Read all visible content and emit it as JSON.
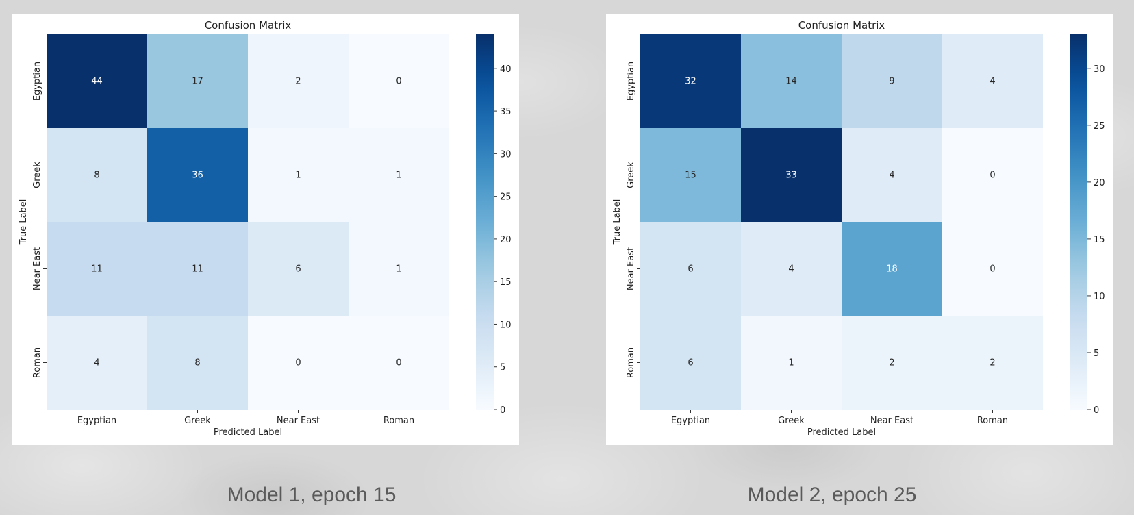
{
  "colors": {
    "low": "#f7fbff",
    "high": "#08306b",
    "annot_light_text": "#ffffff",
    "annot_dark_text": "#262626"
  },
  "panels": [
    {
      "caption": "Model 1, epoch 15"
    },
    {
      "caption": "Model 2, epoch 25"
    }
  ],
  "chart_data": [
    {
      "type": "heatmap",
      "title": "Confusion Matrix",
      "xlabel": "Predicted Label",
      "ylabel": "True Label",
      "x_categories": [
        "Egyptian",
        "Greek",
        "Near East",
        "Roman"
      ],
      "y_categories": [
        "Egyptian",
        "Greek",
        "Near East",
        "Roman"
      ],
      "values": [
        [
          44,
          17,
          2,
          0
        ],
        [
          8,
          36,
          1,
          1
        ],
        [
          11,
          11,
          6,
          1
        ],
        [
          4,
          8,
          0,
          0
        ]
      ],
      "colorbar": {
        "min": 0,
        "max": 44,
        "ticks": [
          0,
          5,
          10,
          15,
          20,
          25,
          30,
          35,
          40
        ]
      },
      "colormap": "Blues"
    },
    {
      "type": "heatmap",
      "title": "Confusion Matrix",
      "xlabel": "Predicted Label",
      "ylabel": "True Label",
      "x_categories": [
        "Egyptian",
        "Greek",
        "Near East",
        "Roman"
      ],
      "y_categories": [
        "Egyptian",
        "Greek",
        "Near East",
        "Roman"
      ],
      "values": [
        [
          32,
          14,
          9,
          4
        ],
        [
          15,
          33,
          4,
          0
        ],
        [
          6,
          4,
          18,
          0
        ],
        [
          6,
          1,
          2,
          2
        ]
      ],
      "colorbar": {
        "min": 0,
        "max": 33,
        "ticks": [
          0,
          5,
          10,
          15,
          20,
          25,
          30
        ]
      },
      "colormap": "Blues"
    }
  ]
}
